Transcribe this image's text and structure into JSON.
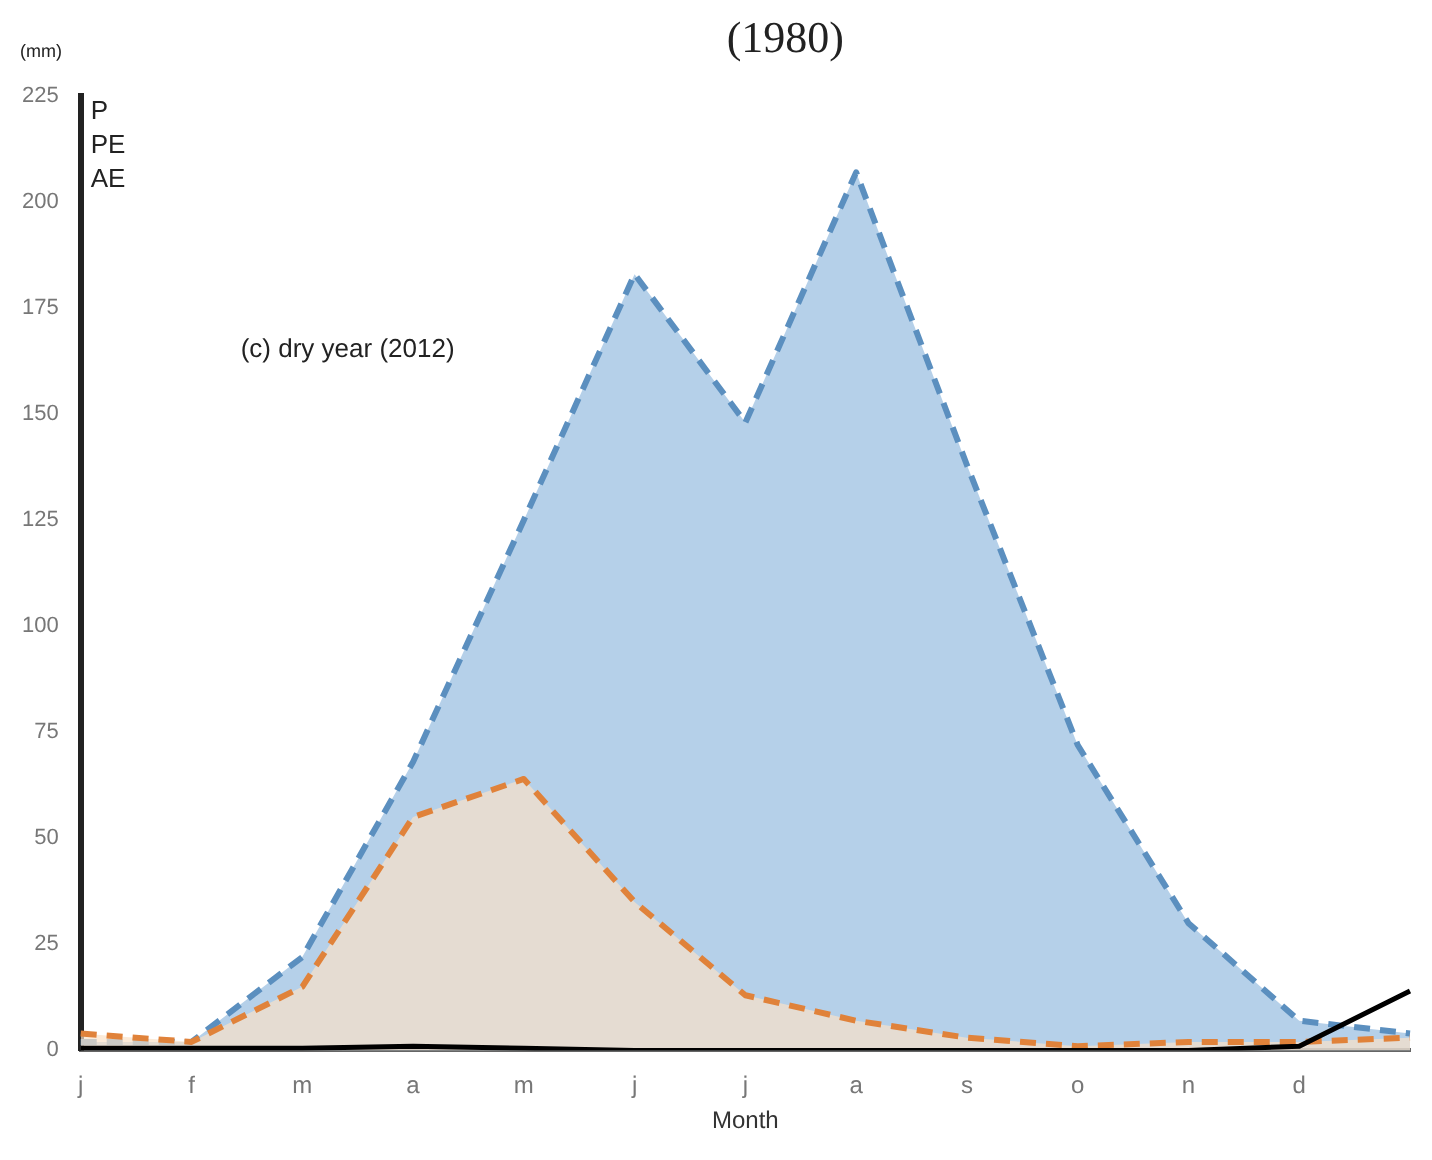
{
  "chart_data": {
    "type": "area",
    "ylabel": "(mm)",
    "xlabel": "Month",
    "annotations": [
      "(1980)",
      "(c) dry year (2012)",
      "P",
      "PE",
      "AE"
    ],
    "categories": [
      "j",
      "f",
      "m",
      "a",
      "m",
      "j",
      "j",
      "a",
      "s",
      "o",
      "n",
      "d",
      null
    ],
    "series": [
      {
        "type": "area",
        "color": "#5b8fbf",
        "line_style": "dashed",
        "values": [
          2,
          2,
          22,
          68,
          125,
          183,
          148,
          207,
          138,
          72,
          30,
          7,
          4
        ]
      },
      {
        "type": "area",
        "color": "#e0823a",
        "line_style": "dashed",
        "values": [
          4,
          2,
          15,
          55,
          64,
          35,
          13,
          7,
          3,
          1,
          2,
          2,
          3
        ]
      },
      {
        "type": "line",
        "color": "#000000",
        "line_style": "solid",
        "values": [
          0.5,
          0.5,
          0.5,
          1,
          0.5,
          0,
          0,
          0,
          0,
          0,
          0,
          1,
          14
        ]
      }
    ],
    "ylim": [
      0,
      225
    ],
    "yticks": [
      0,
      25,
      50,
      75,
      100,
      125,
      150,
      175,
      200,
      225
    ],
    "grid": false,
    "legend": false,
    "marker": "none"
  }
}
